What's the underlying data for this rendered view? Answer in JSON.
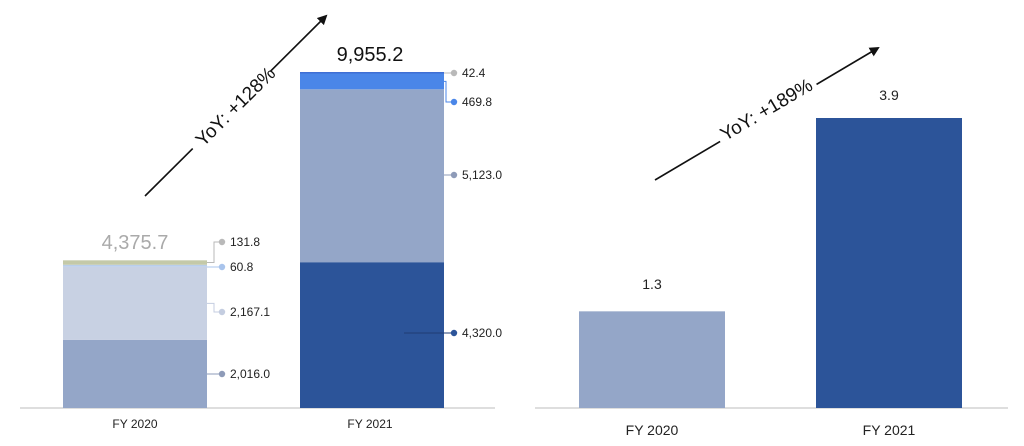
{
  "chart_data": [
    {
      "type": "bar",
      "stacked": true,
      "categories": [
        "FY 2020",
        "FY 2021"
      ],
      "totals": [
        "4,375.7",
        "9,955.2"
      ],
      "series": [
        {
          "values": [
            2016.0,
            4320.0
          ],
          "labels": [
            "2,016.0",
            "4,320.0"
          ],
          "colors": [
            "#94a6c8",
            "#2c5499"
          ]
        },
        {
          "values": [
            2167.1,
            5123.0
          ],
          "labels": [
            "2,167.1",
            "5,123.0"
          ],
          "colors": [
            "#c8d1e3",
            "#94a6c8"
          ]
        },
        {
          "values": [
            60.8,
            469.8
          ],
          "labels": [
            "60.8",
            "469.8"
          ],
          "colors": [
            "#b8cdea",
            "#4a86e8"
          ]
        },
        {
          "values": [
            131.8,
            42.4
          ],
          "labels": [
            "131.8",
            "42.4"
          ],
          "colors": [
            "#c4c9a8",
            "#3f6fd4"
          ]
        }
      ],
      "ylim": [
        0,
        10000
      ],
      "annotation": "YoY: +128%",
      "grid": false
    },
    {
      "type": "bar",
      "categories": [
        "FY 2020",
        "FY 2021"
      ],
      "values": [
        1.3,
        3.9
      ],
      "value_labels": [
        "1.3",
        "3.9"
      ],
      "colors": [
        "#94a6c8",
        "#2c5499"
      ],
      "ylim": [
        0,
        4.5
      ],
      "annotation": "YoY: +189%",
      "grid": false
    }
  ],
  "marker_colors": [
    "#8e9bb8",
    "#c4cde0",
    "#a9c4ec",
    "#b9b9b9",
    "#2c5499",
    "#8e9bb8",
    "#4a86e8",
    "#b9b9b9"
  ]
}
